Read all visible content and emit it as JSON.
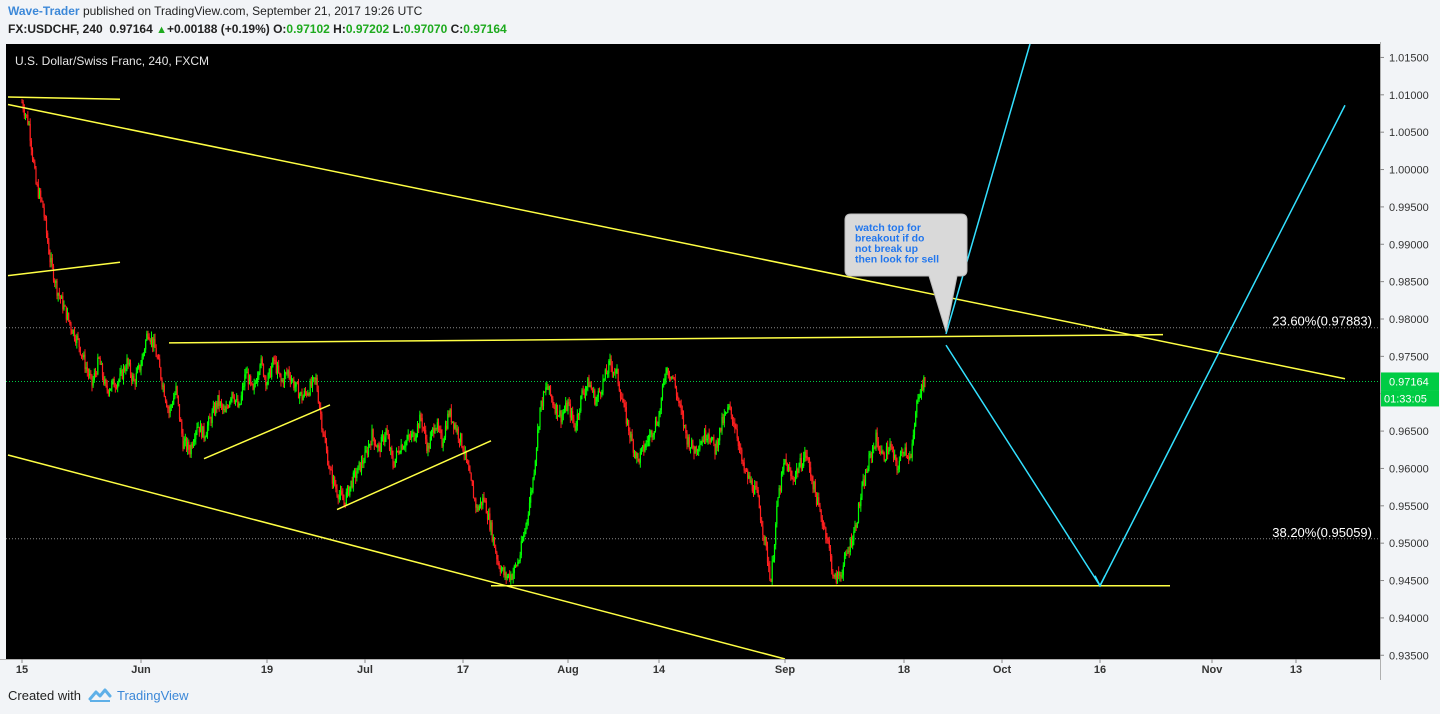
{
  "header": {
    "author": "Wave-Trader",
    "published_text": "published on TradingView.com, September 21, 2017 19:26 UTC",
    "symbol": "FX:USDCHF, 240",
    "last": "0.97164",
    "change": "+0.00188 (+0.19%)",
    "o_label": "O:",
    "o_value": "0.97102",
    "h_label": "H:",
    "h_value": "0.97202",
    "l_label": "L:",
    "l_value": "0.97070",
    "c_label": "C:",
    "c_value": "0.97164"
  },
  "footer": {
    "created_with": "Created with",
    "brand": "TradingView"
  },
  "colors": {
    "background": "#000000",
    "up_candle": "#00ff00",
    "down_candle": "#ff2020",
    "trendline": "#ffff44",
    "projection": "#33e0ff",
    "last_price": "#00cc44",
    "axis_bg": "#f2f4f7",
    "callout_bg": "#d9d9d9",
    "callout_text": "#2277ee"
  },
  "chart_data": {
    "type": "candlestick",
    "title": "U.S. Dollar/Swiss Franc, 240, FXCM",
    "y_axis_side": "right",
    "ylim": [
      0.9345,
      1.0168
    ],
    "y_ticks": [
      "1.01500",
      "1.01000",
      "1.00500",
      "1.00000",
      "0.99500",
      "0.99000",
      "0.98500",
      "0.98000",
      "0.97500",
      "0.97000",
      "0.96500",
      "0.96000",
      "0.95500",
      "0.95000",
      "0.94500",
      "0.94000",
      "0.93500"
    ],
    "y_tick_values": [
      1.015,
      1.01,
      1.005,
      1.0,
      0.995,
      0.99,
      0.985,
      0.98,
      0.975,
      0.97,
      0.965,
      0.96,
      0.955,
      0.95,
      0.945,
      0.94,
      0.935
    ],
    "x_ticks": [
      {
        "label": "15",
        "date": "2017-05-15"
      },
      {
        "label": "Jun",
        "date": "2017-06-01"
      },
      {
        "label": "19",
        "date": "2017-06-19"
      },
      {
        "label": "Jul",
        "date": "2017-07-03"
      },
      {
        "label": "17",
        "date": "2017-07-17"
      },
      {
        "label": "Aug",
        "date": "2017-08-01"
      },
      {
        "label": "14",
        "date": "2017-08-14"
      },
      {
        "label": "Sep",
        "date": "2017-09-01"
      },
      {
        "label": "18",
        "date": "2017-09-18"
      },
      {
        "label": "Oct",
        "date": "2017-10-02"
      },
      {
        "label": "16",
        "date": "2017-10-16"
      },
      {
        "label": "Nov",
        "date": "2017-11-01"
      },
      {
        "label": "13",
        "date": "2017-11-13"
      }
    ],
    "price_path": [
      [
        "2017-05-15",
        1.009
      ],
      [
        "2017-05-16",
        1.006
      ],
      [
        "2017-05-17",
        0.998
      ],
      [
        "2017-05-18",
        0.995
      ],
      [
        "2017-05-19",
        0.988
      ],
      [
        "2017-05-20",
        0.984
      ],
      [
        "2017-05-22",
        0.979
      ],
      [
        "2017-05-23",
        0.977
      ],
      [
        "2017-05-24",
        0.974
      ],
      [
        "2017-05-25",
        0.9712
      ],
      [
        "2017-05-26",
        0.9745
      ],
      [
        "2017-05-27",
        0.9705
      ],
      [
        "2017-05-29",
        0.972
      ],
      [
        "2017-05-30",
        0.9742
      ],
      [
        "2017-05-31",
        0.9715
      ],
      [
        "2017-06-01",
        0.974
      ],
      [
        "2017-06-02",
        0.9785
      ],
      [
        "2017-06-03",
        0.976
      ],
      [
        "2017-06-05",
        0.9675
      ],
      [
        "2017-06-06",
        0.9705
      ],
      [
        "2017-06-07",
        0.9635
      ],
      [
        "2017-06-08",
        0.9625
      ],
      [
        "2017-06-09",
        0.966
      ],
      [
        "2017-06-10",
        0.9645
      ],
      [
        "2017-06-12",
        0.969
      ],
      [
        "2017-06-13",
        0.9672
      ],
      [
        "2017-06-14",
        0.9705
      ],
      [
        "2017-06-15",
        0.9678
      ],
      [
        "2017-06-16",
        0.973
      ],
      [
        "2017-06-17",
        0.97
      ],
      [
        "2017-06-18",
        0.9745
      ],
      [
        "2017-06-19",
        0.9715
      ],
      [
        "2017-06-20",
        0.9745
      ],
      [
        "2017-06-21",
        0.9715
      ],
      [
        "2017-06-22",
        0.973
      ],
      [
        "2017-06-23",
        0.971
      ],
      [
        "2017-06-24",
        0.9695
      ],
      [
        "2017-06-26",
        0.9718
      ],
      [
        "2017-06-27",
        0.965
      ],
      [
        "2017-06-28",
        0.9595
      ],
      [
        "2017-06-29",
        0.957
      ],
      [
        "2017-06-30",
        0.9555
      ],
      [
        "2017-07-01",
        0.958
      ],
      [
        "2017-07-03",
        0.9615
      ],
      [
        "2017-07-04",
        0.9645
      ],
      [
        "2017-07-05",
        0.9625
      ],
      [
        "2017-07-06",
        0.965
      ],
      [
        "2017-07-07",
        0.9605
      ],
      [
        "2017-07-08",
        0.963
      ],
      [
        "2017-07-10",
        0.9645
      ],
      [
        "2017-07-11",
        0.9668
      ],
      [
        "2017-07-12",
        0.9625
      ],
      [
        "2017-07-13",
        0.9662
      ],
      [
        "2017-07-14",
        0.9635
      ],
      [
        "2017-07-15",
        0.9675
      ],
      [
        "2017-07-16",
        0.9655
      ],
      [
        "2017-07-17",
        0.963
      ],
      [
        "2017-07-18",
        0.9585
      ],
      [
        "2017-07-19",
        0.9545
      ],
      [
        "2017-07-20",
        0.956
      ],
      [
        "2017-07-21",
        0.952
      ],
      [
        "2017-07-22",
        0.9475
      ],
      [
        "2017-07-23",
        0.9455
      ],
      [
        "2017-07-24",
        0.9458
      ],
      [
        "2017-07-25",
        0.9478
      ],
      [
        "2017-07-26",
        0.9525
      ],
      [
        "2017-07-27",
        0.9585
      ],
      [
        "2017-07-28",
        0.968
      ],
      [
        "2017-07-29",
        0.971
      ],
      [
        "2017-07-30",
        0.9685
      ],
      [
        "2017-07-31",
        0.967
      ],
      [
        "2017-08-01",
        0.9685
      ],
      [
        "2017-08-02",
        0.9655
      ],
      [
        "2017-08-03",
        0.97
      ],
      [
        "2017-08-04",
        0.9715
      ],
      [
        "2017-08-05",
        0.969
      ],
      [
        "2017-08-07",
        0.974
      ],
      [
        "2017-08-08",
        0.9725
      ],
      [
        "2017-08-09",
        0.968
      ],
      [
        "2017-08-10",
        0.964
      ],
      [
        "2017-08-11",
        0.961
      ],
      [
        "2017-08-12",
        0.963
      ],
      [
        "2017-08-14",
        0.967
      ],
      [
        "2017-08-15",
        0.9735
      ],
      [
        "2017-08-16",
        0.9722
      ],
      [
        "2017-08-17",
        0.968
      ],
      [
        "2017-08-18",
        0.964
      ],
      [
        "2017-08-19",
        0.9625
      ],
      [
        "2017-08-21",
        0.965
      ],
      [
        "2017-08-22",
        0.9625
      ],
      [
        "2017-08-23",
        0.966
      ],
      [
        "2017-08-24",
        0.968
      ],
      [
        "2017-08-25",
        0.9655
      ],
      [
        "2017-08-26",
        0.96
      ],
      [
        "2017-08-28",
        0.9565
      ],
      [
        "2017-08-29",
        0.951
      ],
      [
        "2017-08-30",
        0.945
      ],
      [
        "2017-08-31",
        0.956
      ],
      [
        "2017-09-01",
        0.961
      ],
      [
        "2017-09-02",
        0.9585
      ],
      [
        "2017-09-04",
        0.962
      ],
      [
        "2017-09-05",
        0.958
      ],
      [
        "2017-09-06",
        0.954
      ],
      [
        "2017-09-07",
        0.951
      ],
      [
        "2017-09-08",
        0.945
      ],
      [
        "2017-09-09",
        0.946
      ],
      [
        "2017-09-11",
        0.952
      ],
      [
        "2017-09-12",
        0.957
      ],
      [
        "2017-09-13",
        0.961
      ],
      [
        "2017-09-14",
        0.964
      ],
      [
        "2017-09-15",
        0.9615
      ],
      [
        "2017-09-16",
        0.963
      ],
      [
        "2017-09-17",
        0.96
      ],
      [
        "2017-09-18",
        0.963
      ],
      [
        "2017-09-19",
        0.9612
      ],
      [
        "2017-09-20",
        0.97
      ],
      [
        "2017-09-21",
        0.9716
      ]
    ],
    "trendlines": [
      {
        "name": "upper-channel",
        "start": [
          "2017-05-13",
          1.0087
        ],
        "end": [
          "2017-11-20",
          0.972
        ]
      },
      {
        "name": "lower-channel",
        "start": [
          "2017-05-13",
          0.9618
        ],
        "end": [
          "2017-09-01",
          0.9345
        ]
      },
      {
        "name": "top-left-line",
        "start": [
          "2017-05-13",
          1.0097
        ],
        "end": [
          "2017-05-29",
          1.0094
        ]
      },
      {
        "name": "mid-left-line",
        "start": [
          "2017-05-13",
          0.9858
        ],
        "end": [
          "2017-05-29",
          0.9876
        ]
      },
      {
        "name": "resistance",
        "start": [
          "2017-06-05",
          0.9768
        ],
        "end": [
          "2017-10-25",
          0.9779
        ]
      },
      {
        "name": "support",
        "start": [
          "2017-07-21",
          0.9443
        ],
        "end": [
          "2017-10-26",
          0.9443
        ]
      },
      {
        "name": "rising-1",
        "start": [
          "2017-06-10",
          0.9613
        ],
        "end": [
          "2017-06-28",
          0.9685
        ]
      },
      {
        "name": "rising-2",
        "start": [
          "2017-06-29",
          0.9545
        ],
        "end": [
          "2017-07-21",
          0.9637
        ]
      }
    ],
    "projections": [
      {
        "name": "breakout-path",
        "points": [
          [
            "2017-09-24",
            0.978
          ],
          [
            "2017-10-06",
            1.0168
          ]
        ]
      },
      {
        "name": "sell-path",
        "points": [
          [
            "2017-09-24",
            0.9765
          ],
          [
            "2017-10-16",
            0.9443
          ],
          [
            "2017-11-20",
            1.0086
          ]
        ]
      }
    ],
    "horizontal_levels": [
      {
        "label": "23.60%(0.97883)",
        "value": 0.97883
      },
      {
        "label": "38.20%(0.95059)",
        "value": 0.95059
      }
    ],
    "last_price": {
      "value": 0.97164,
      "label": "0.97164",
      "countdown": "01:33:05"
    },
    "annotation": {
      "text": "watch top for breakout if do not break up then look for sell",
      "lines": [
        "watch top for",
        "breakout if do",
        "not break up",
        "then look for sell"
      ],
      "target": [
        "2017-09-24",
        0.9783
      ]
    }
  }
}
